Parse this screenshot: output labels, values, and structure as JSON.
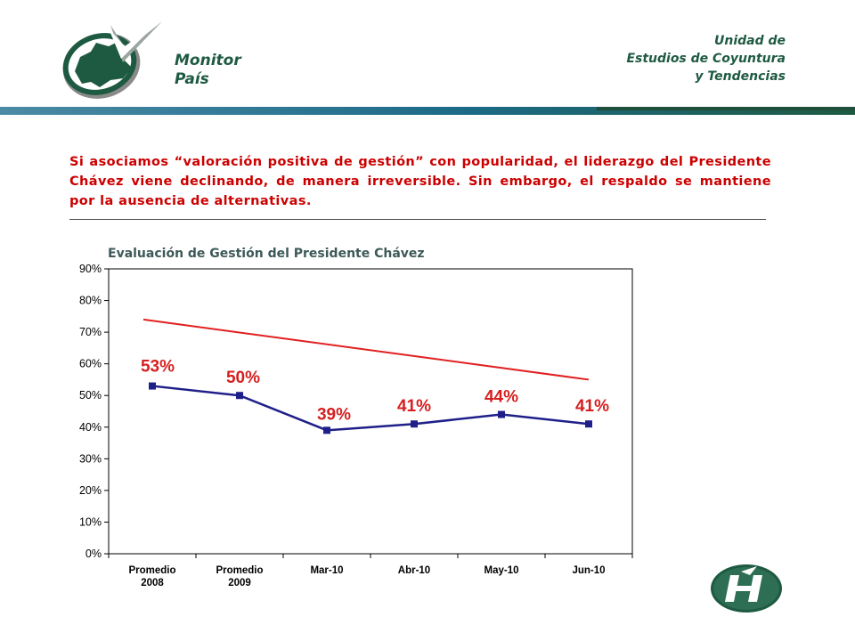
{
  "header": {
    "brand_line1": "Monitor",
    "brand_line2": "País",
    "unit_line1": "Unidad de",
    "unit_line2": "Estudios de Coyuntura",
    "unit_line3": "y Tendencias"
  },
  "statement": "Si asociamos “valoración positiva de gestión” con popularidad, el liderazgo del Presidente Chávez viene declinando, de manera irreversible. Sin embargo, el respaldo se mantiene por la ausencia de alternativas.",
  "colors": {
    "brand_green": "#1e5a42",
    "statement_red": "#cc0000",
    "series_blue": "#1f1f8a",
    "trend_red": "#e02020",
    "label_red": "#d62020"
  },
  "chart_data": {
    "type": "line",
    "title": "Evaluación de Gestión del Presidente Chávez",
    "categories": [
      [
        "Promedio",
        "2008"
      ],
      [
        "Promedio",
        "2009"
      ],
      [
        "Mar-10"
      ],
      [
        "Abr-10"
      ],
      [
        "May-10"
      ],
      [
        "Jun-10"
      ]
    ],
    "series": [
      {
        "values": [
          53,
          50,
          39,
          41,
          44,
          41
        ],
        "data_labels": [
          "53%",
          "50%",
          "39%",
          "41%",
          "44%",
          "41%"
        ]
      }
    ],
    "trendline": {
      "start": 74,
      "end": 55
    },
    "yticks": [
      "0%",
      "10%",
      "20%",
      "30%",
      "40%",
      "50%",
      "60%",
      "70%",
      "80%",
      "90%"
    ],
    "ylim": [
      0,
      90
    ],
    "grid": false,
    "legend": "none"
  }
}
